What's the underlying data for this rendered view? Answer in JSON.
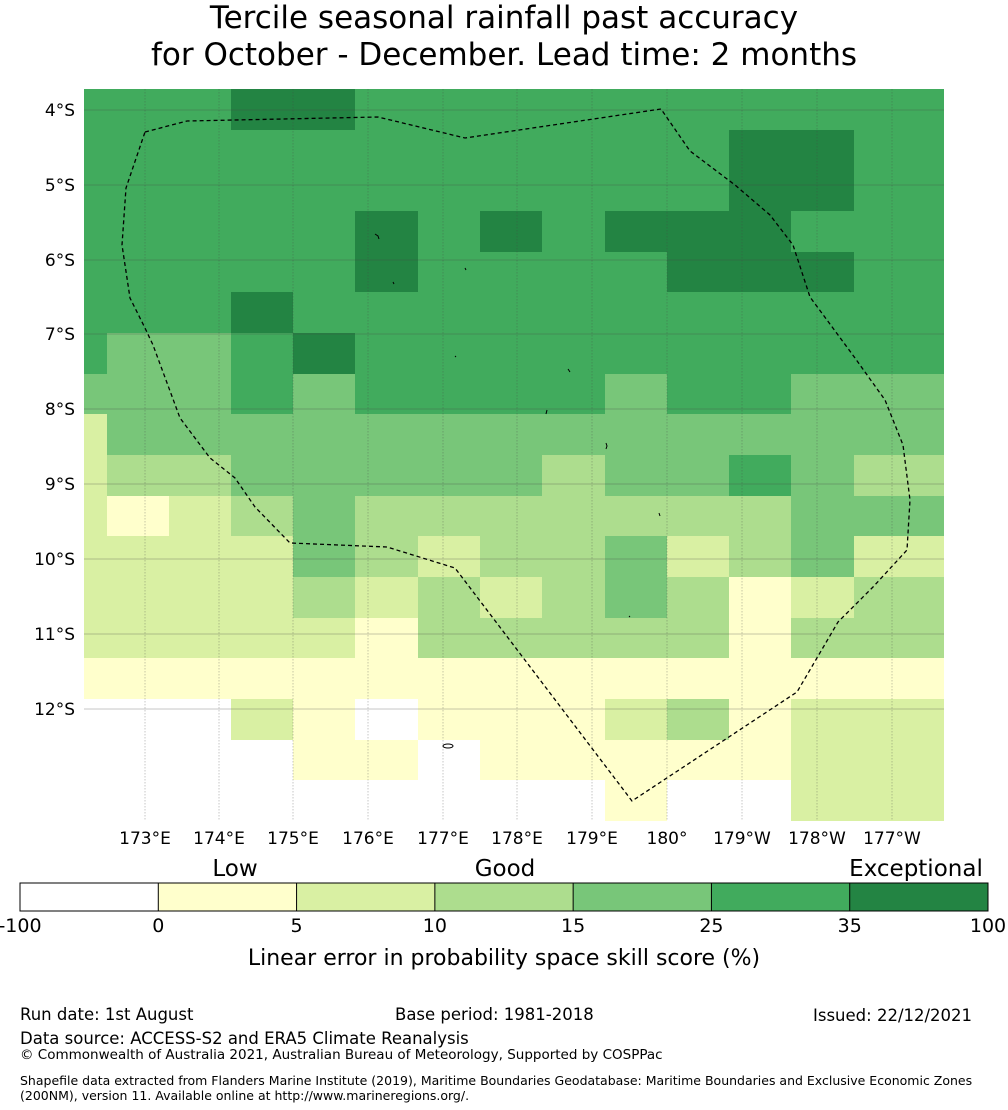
{
  "title_line1": "Tercile seasonal rainfall past accuracy",
  "title_line2": "for October - December. Lead time: 2 months",
  "map": {
    "lon_labels": [
      "173°E",
      "174°E",
      "175°E",
      "176°E",
      "177°E",
      "178°E",
      "179°E",
      "180°",
      "179°W",
      "178°W",
      "177°W"
    ],
    "lat_labels": [
      "4°S",
      "5°S",
      "6°S",
      "7°S",
      "8°S",
      "9°S",
      "10°S",
      "11°S",
      "12°S"
    ],
    "grid_cols": 14,
    "grid_rows": 18,
    "cell_classes": [
      [
        5,
        5,
        5,
        6,
        6,
        5,
        5,
        5,
        5,
        5,
        5,
        5,
        5,
        5
      ],
      [
        5,
        5,
        5,
        5,
        5,
        5,
        5,
        5,
        5,
        5,
        5,
        6,
        6,
        5
      ],
      [
        5,
        5,
        5,
        5,
        5,
        5,
        5,
        5,
        5,
        5,
        5,
        6,
        6,
        5
      ],
      [
        5,
        5,
        5,
        5,
        5,
        6,
        5,
        6,
        5,
        6,
        6,
        6,
        5,
        5
      ],
      [
        5,
        5,
        5,
        5,
        5,
        6,
        5,
        5,
        5,
        5,
        6,
        6,
        6,
        5
      ],
      [
        5,
        5,
        5,
        6,
        5,
        5,
        5,
        5,
        5,
        5,
        5,
        5,
        5,
        5
      ],
      [
        5,
        4,
        4,
        5,
        6,
        5,
        5,
        5,
        5,
        5,
        5,
        5,
        5,
        5
      ],
      [
        4,
        4,
        4,
        5,
        4,
        5,
        5,
        5,
        5,
        4,
        5,
        5,
        4,
        4
      ],
      [
        2,
        4,
        4,
        4,
        4,
        4,
        4,
        4,
        4,
        4,
        4,
        4,
        4,
        4
      ],
      [
        2,
        3,
        3,
        4,
        4,
        4,
        4,
        4,
        3,
        4,
        4,
        5,
        4,
        3
      ],
      [
        2,
        1,
        2,
        3,
        4,
        3,
        3,
        3,
        3,
        3,
        3,
        3,
        4,
        4
      ],
      [
        2,
        2,
        2,
        2,
        4,
        3,
        2,
        3,
        3,
        4,
        2,
        3,
        4,
        2
      ],
      [
        2,
        2,
        2,
        2,
        3,
        2,
        3,
        2,
        3,
        4,
        3,
        1,
        2,
        3
      ],
      [
        2,
        2,
        2,
        2,
        2,
        1,
        3,
        3,
        3,
        3,
        3,
        1,
        3,
        3
      ],
      [
        1,
        1,
        1,
        1,
        1,
        1,
        1,
        1,
        1,
        1,
        1,
        1,
        1,
        1
      ],
      [
        0,
        0,
        0,
        2,
        1,
        0,
        1,
        1,
        1,
        2,
        3,
        1,
        2,
        2
      ],
      [
        0,
        0,
        0,
        0,
        1,
        1,
        0,
        1,
        1,
        1,
        1,
        1,
        2,
        2
      ],
      [
        0,
        0,
        0,
        0,
        0,
        0,
        0,
        0,
        0,
        1,
        0,
        0,
        2,
        2
      ]
    ]
  },
  "legend": {
    "category_low": "Low",
    "category_good": "Good",
    "category_exceptional": "Exceptional",
    "tick_labels": [
      "-100",
      "0",
      "5",
      "10",
      "15",
      "25",
      "35",
      "100"
    ],
    "colors": [
      "#ffffff",
      "#ffffcc",
      "#d9f0a3",
      "#addd8e",
      "#78c679",
      "#41ab5d",
      "#238443"
    ],
    "axis_label": "Linear error in probability space skill score (%)"
  },
  "footer": {
    "run_date": "Run date: 1st August",
    "base_period": "Base period: 1981-2018",
    "issued": "Issued: 22/12/2021",
    "data_source": "Data source: ACCESS-S2 and ERA5 Climate Reanalysis",
    "copyright": "© Commonwealth of Australia 2021, Australian Bureau of Meteorology, Supported by COSPPac",
    "shapefile": "Shapefile data extracted from Flanders Marine Institute (2019), Maritime Boundaries Geodatabase: Maritime Boundaries and Exclusive Economic Zones (200NM), version 11. Available online at http://www.marineregions.org/."
  }
}
